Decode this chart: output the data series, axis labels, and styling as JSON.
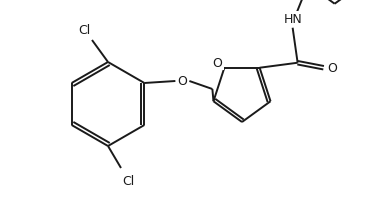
{
  "bg_color": "#ffffff",
  "line_color": "#1a1a1a",
  "line_width": 1.4,
  "figsize": [
    3.81,
    2.05
  ],
  "dpi": 100,
  "xlim": [
    0,
    381
  ],
  "ylim": [
    0,
    205
  ]
}
